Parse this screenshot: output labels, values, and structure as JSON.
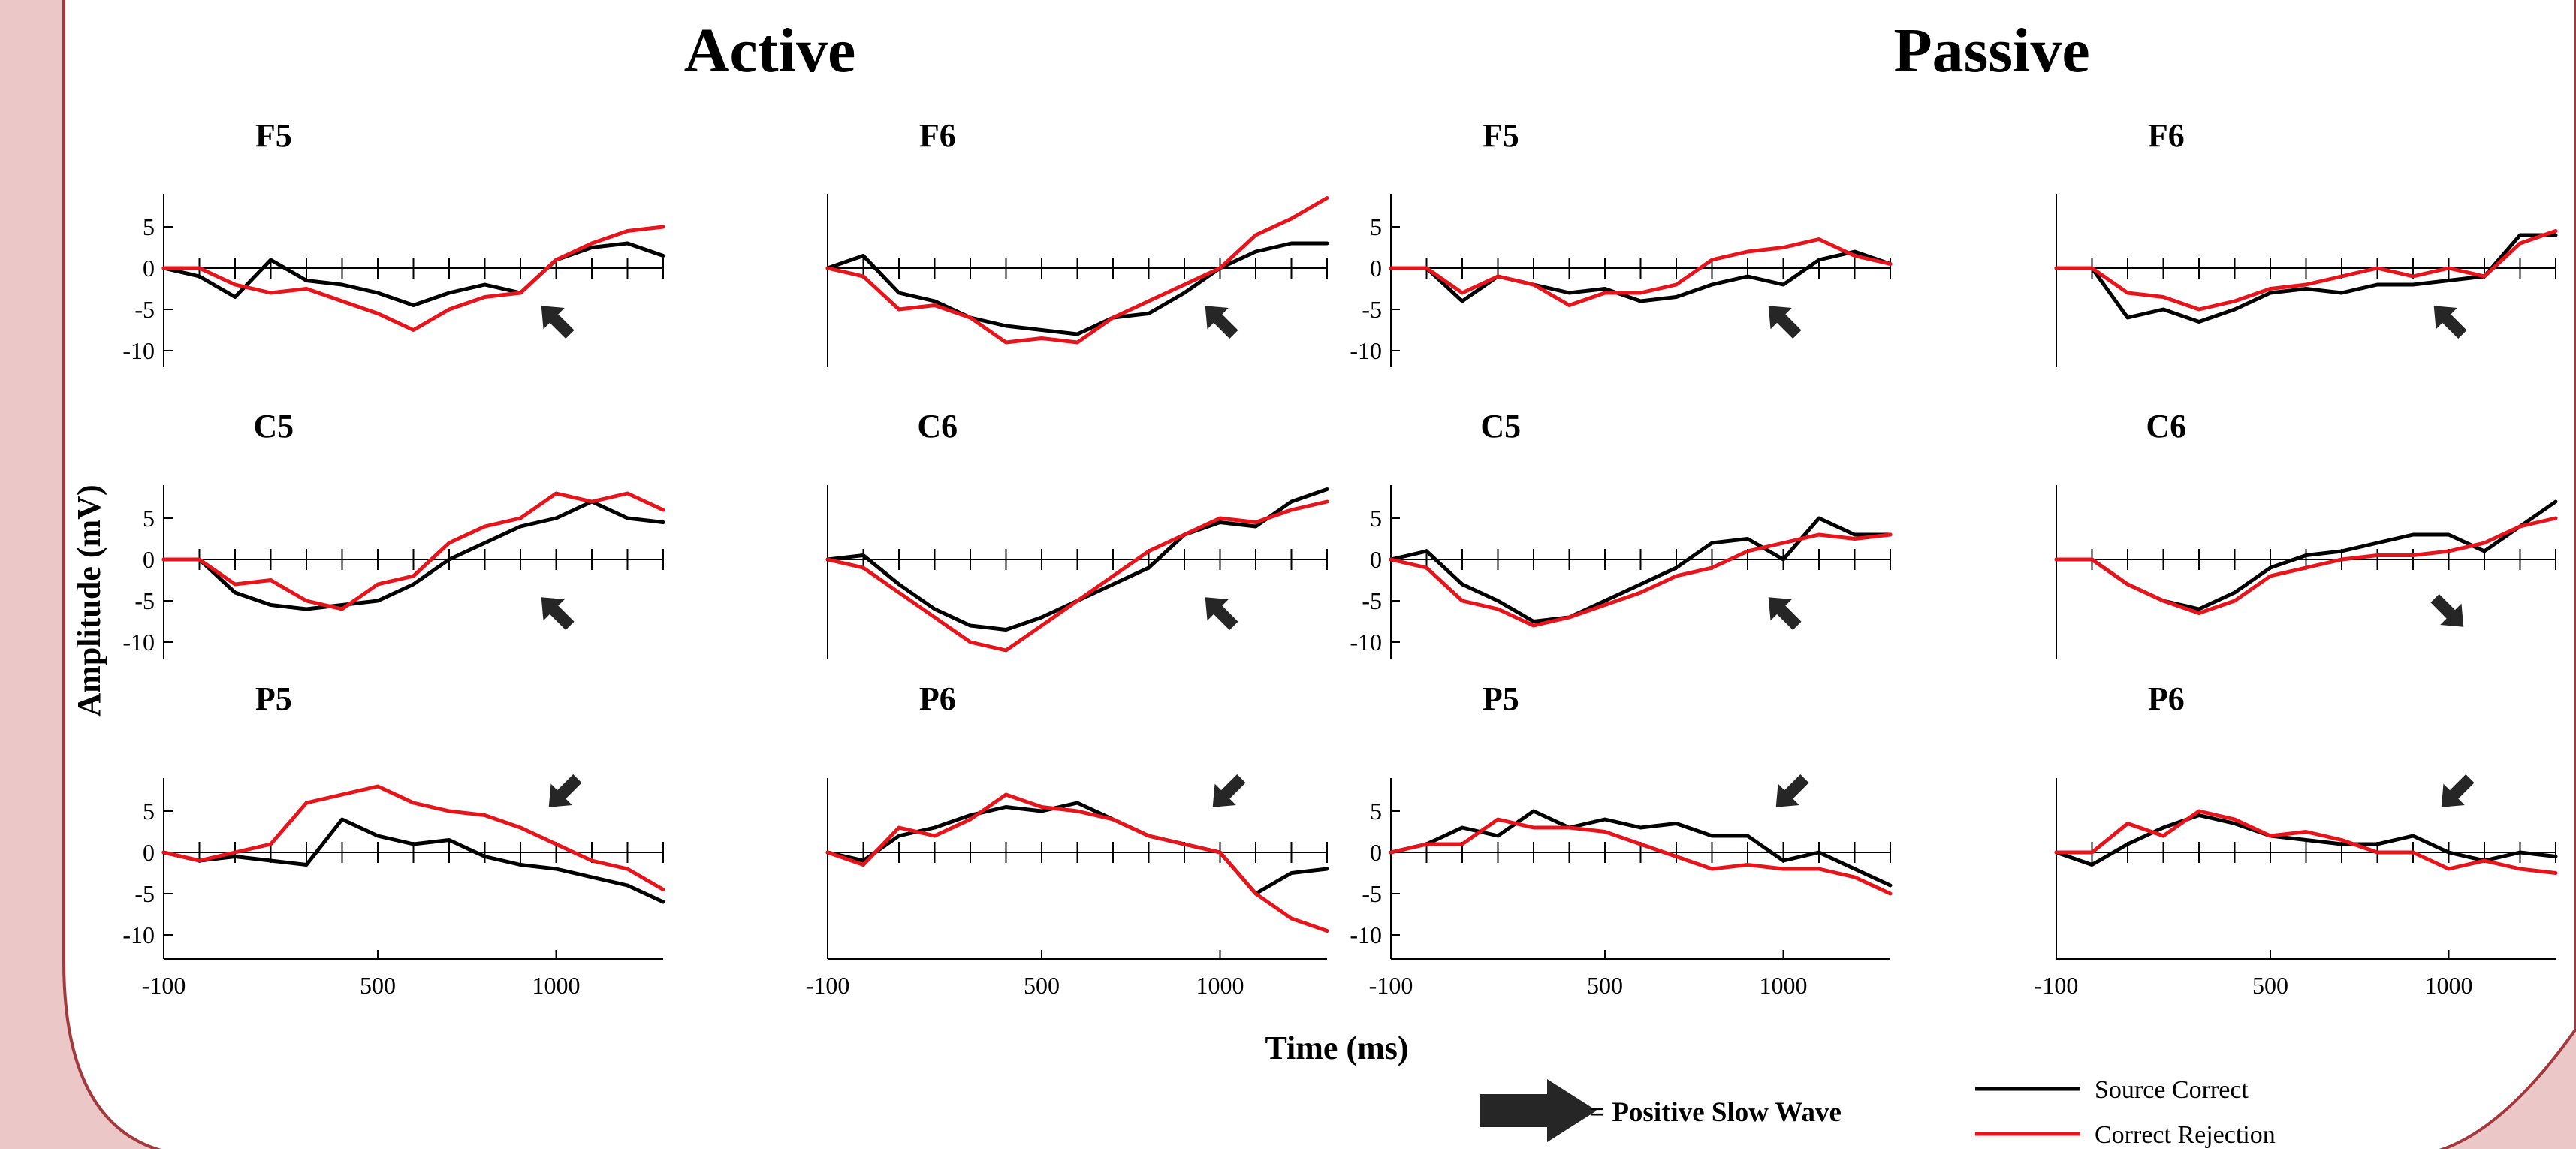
{
  "figure": {
    "group_titles": [
      "Active",
      "Passive"
    ],
    "ylabel": "Amplitude (mV)",
    "xlabel": "Time (ms)",
    "arrow_legend": "= Positive Slow Wave",
    "line_legend": [
      {
        "label": "Source Correct",
        "color": "#000000"
      },
      {
        "label": "Correct Rejection",
        "color": "#e8141c"
      }
    ],
    "arrow_icon": "thick-arrow-icon",
    "background_color": "#ebc7c8",
    "panel_color": "#ffffff",
    "border_color": "#a3393d"
  },
  "chart_data": [
    {
      "type": "line",
      "group": "Active",
      "title": "F5",
      "xlim": [
        -100,
        1300
      ],
      "ylim": [
        -12,
        9
      ],
      "yticks": [
        5,
        0,
        -5,
        -10
      ],
      "xticks": [],
      "arrow": {
        "x": 1000,
        "dir": "up-left"
      },
      "x": [
        -100,
        0,
        100,
        200,
        300,
        400,
        500,
        600,
        700,
        800,
        900,
        1000,
        1100,
        1200,
        1300
      ],
      "series": [
        {
          "name": "Source Correct",
          "color": "#000000",
          "values": [
            0,
            -1,
            -3.5,
            1,
            -1.5,
            -2,
            -3,
            -4.5,
            -3,
            -2,
            -3,
            1,
            2.5,
            3,
            1.5
          ]
        },
        {
          "name": "Correct Rejection",
          "color": "#e8141c",
          "values": [
            0,
            0,
            -2,
            -3,
            -2.5,
            -4,
            -5.5,
            -7.5,
            -5,
            -3.5,
            -3,
            1,
            3,
            4.5,
            5
          ]
        }
      ]
    },
    {
      "type": "line",
      "group": "Active",
      "title": "F6",
      "xlim": [
        -100,
        1300
      ],
      "ylim": [
        -12,
        9
      ],
      "yticks": [],
      "xticks": [],
      "arrow": {
        "x": 1000,
        "dir": "up-left"
      },
      "x": [
        -100,
        0,
        100,
        200,
        300,
        400,
        500,
        600,
        700,
        800,
        900,
        1000,
        1100,
        1200,
        1300
      ],
      "series": [
        {
          "name": "Source Correct",
          "color": "#000000",
          "values": [
            0,
            1.5,
            -3,
            -4,
            -6,
            -7,
            -7.5,
            -8,
            -6,
            -5.5,
            -3,
            0,
            2,
            3,
            3
          ]
        },
        {
          "name": "Correct Rejection",
          "color": "#e8141c",
          "values": [
            0,
            -1,
            -5,
            -4.5,
            -6,
            -9,
            -8.5,
            -9,
            -6,
            -4,
            -2,
            0,
            4,
            6,
            8.5
          ]
        }
      ]
    },
    {
      "type": "line",
      "group": "Passive",
      "title": "F5",
      "xlim": [
        -100,
        1300
      ],
      "ylim": [
        -12,
        9
      ],
      "yticks": [
        5,
        0,
        -5,
        -10
      ],
      "xticks": [],
      "arrow": {
        "x": 1000,
        "dir": "up-left"
      },
      "x": [
        -100,
        0,
        100,
        200,
        300,
        400,
        500,
        600,
        700,
        800,
        900,
        1000,
        1100,
        1200,
        1300
      ],
      "series": [
        {
          "name": "Source Correct",
          "color": "#000000",
          "values": [
            0,
            0,
            -4,
            -1,
            -2,
            -3,
            -2.5,
            -4,
            -3.5,
            -2,
            -1,
            -2,
            1,
            2,
            0.5
          ]
        },
        {
          "name": "Correct Rejection",
          "color": "#e8141c",
          "values": [
            0,
            0,
            -3,
            -1,
            -2,
            -4.5,
            -3,
            -3,
            -2,
            1,
            2,
            2.5,
            3.5,
            1.5,
            0.5
          ]
        }
      ]
    },
    {
      "type": "line",
      "group": "Passive",
      "title": "F6",
      "xlim": [
        -100,
        1300
      ],
      "ylim": [
        -12,
        9
      ],
      "yticks": [],
      "xticks": [],
      "arrow": {
        "x": 1000,
        "dir": "up-left"
      },
      "x": [
        -100,
        0,
        100,
        200,
        300,
        400,
        500,
        600,
        700,
        800,
        900,
        1000,
        1100,
        1200,
        1300
      ],
      "series": [
        {
          "name": "Source Correct",
          "color": "#000000",
          "values": [
            0,
            0,
            -6,
            -5,
            -6.5,
            -5,
            -3,
            -2.5,
            -3,
            -2,
            -2,
            -1.5,
            -1,
            4,
            4
          ]
        },
        {
          "name": "Correct Rejection",
          "color": "#e8141c",
          "values": [
            0,
            0,
            -3,
            -3.5,
            -5,
            -4,
            -2.5,
            -2,
            -1,
            0,
            -1,
            0,
            -1,
            3,
            4.5
          ]
        }
      ]
    },
    {
      "type": "line",
      "group": "Active",
      "title": "C5",
      "xlim": [
        -100,
        1300
      ],
      "ylim": [
        -12,
        9
      ],
      "yticks": [
        5,
        0,
        -5,
        -10
      ],
      "xticks": [],
      "arrow": {
        "x": 1000,
        "dir": "up-left"
      },
      "x": [
        -100,
        0,
        100,
        200,
        300,
        400,
        500,
        600,
        700,
        800,
        900,
        1000,
        1100,
        1200,
        1300
      ],
      "series": [
        {
          "name": "Source Correct",
          "color": "#000000",
          "values": [
            0,
            0,
            -4,
            -5.5,
            -6,
            -5.5,
            -5,
            -3,
            0,
            2,
            4,
            5,
            7,
            5,
            4.5
          ]
        },
        {
          "name": "Correct Rejection",
          "color": "#e8141c",
          "values": [
            0,
            0,
            -3,
            -2.5,
            -5,
            -6,
            -3,
            -2,
            2,
            4,
            5,
            8,
            7,
            8,
            6
          ]
        }
      ]
    },
    {
      "type": "line",
      "group": "Active",
      "title": "C6",
      "xlim": [
        -100,
        1300
      ],
      "ylim": [
        -12,
        9
      ],
      "yticks": [],
      "xticks": [],
      "arrow": {
        "x": 1000,
        "dir": "up-left"
      },
      "x": [
        -100,
        0,
        100,
        200,
        300,
        400,
        500,
        600,
        700,
        800,
        900,
        1000,
        1100,
        1200,
        1300
      ],
      "series": [
        {
          "name": "Source Correct",
          "color": "#000000",
          "values": [
            0,
            0.5,
            -3,
            -6,
            -8,
            -8.5,
            -7,
            -5,
            -3,
            -1,
            3,
            4.5,
            4,
            7,
            8.5
          ]
        },
        {
          "name": "Correct Rejection",
          "color": "#e8141c",
          "values": [
            0,
            -1,
            -4,
            -7,
            -10,
            -11,
            -8,
            -5,
            -2,
            1,
            3,
            5,
            4.5,
            6,
            7
          ]
        }
      ]
    },
    {
      "type": "line",
      "group": "Passive",
      "title": "C5",
      "xlim": [
        -100,
        1300
      ],
      "ylim": [
        -12,
        9
      ],
      "yticks": [
        5,
        0,
        -5,
        -10
      ],
      "xticks": [],
      "arrow": {
        "x": 1000,
        "dir": "up-left"
      },
      "x": [
        -100,
        0,
        100,
        200,
        300,
        400,
        500,
        600,
        700,
        800,
        900,
        1000,
        1100,
        1200,
        1300
      ],
      "series": [
        {
          "name": "Source Correct",
          "color": "#000000",
          "values": [
            0,
            1,
            -3,
            -5,
            -7.5,
            -7,
            -5,
            -3,
            -1,
            2,
            2.5,
            0,
            5,
            3,
            3
          ]
        },
        {
          "name": "Correct Rejection",
          "color": "#e8141c",
          "values": [
            0,
            -1,
            -5,
            -6,
            -8,
            -7,
            -5.5,
            -4,
            -2,
            -1,
            1,
            2,
            3,
            2.5,
            3
          ]
        }
      ]
    },
    {
      "type": "line",
      "group": "Passive",
      "title": "C6",
      "xlim": [
        -100,
        1300
      ],
      "ylim": [
        -12,
        9
      ],
      "yticks": [],
      "xticks": [],
      "arrow": {
        "x": 1000,
        "dir": "down-right"
      },
      "x": [
        -100,
        0,
        100,
        200,
        300,
        400,
        500,
        600,
        700,
        800,
        900,
        1000,
        1100,
        1200,
        1300
      ],
      "series": [
        {
          "name": "Source Correct",
          "color": "#000000",
          "values": [
            0,
            0,
            -3,
            -5,
            -6,
            -4,
            -1,
            0.5,
            1,
            2,
            3,
            3,
            1,
            4,
            7
          ]
        },
        {
          "name": "Correct Rejection",
          "color": "#e8141c",
          "values": [
            0,
            0,
            -3,
            -5,
            -6.5,
            -5,
            -2,
            -1,
            0,
            0.5,
            0.5,
            1,
            2,
            4,
            5
          ]
        }
      ]
    },
    {
      "type": "line",
      "group": "Active",
      "title": "P5",
      "xlim": [
        -100,
        1300
      ],
      "ylim": [
        -12,
        9
      ],
      "yticks": [
        5,
        0,
        -5,
        -10
      ],
      "xticks": [
        -100,
        500,
        1000
      ],
      "arrow": {
        "x": 1000,
        "dir": "down-left"
      },
      "x": [
        -100,
        0,
        100,
        200,
        300,
        400,
        500,
        600,
        700,
        800,
        900,
        1000,
        1100,
        1200,
        1300
      ],
      "series": [
        {
          "name": "Source Correct",
          "color": "#000000",
          "values": [
            0,
            -1,
            -0.5,
            -1,
            -1.5,
            4,
            2,
            1,
            1.5,
            -0.5,
            -1.5,
            -2,
            -3,
            -4,
            -6
          ]
        },
        {
          "name": "Correct Rejection",
          "color": "#e8141c",
          "values": [
            0,
            -1,
            0,
            1,
            6,
            7,
            8,
            6,
            5,
            4.5,
            3,
            1,
            -1,
            -2,
            -4.5
          ]
        }
      ]
    },
    {
      "type": "line",
      "group": "Active",
      "title": "P6",
      "xlim": [
        -100,
        1300
      ],
      "ylim": [
        -12,
        9
      ],
      "yticks": [],
      "xticks": [
        -100,
        500,
        1000
      ],
      "arrow": {
        "x": 1000,
        "dir": "down-left"
      },
      "x": [
        -100,
        0,
        100,
        200,
        300,
        400,
        500,
        600,
        700,
        800,
        900,
        1000,
        1100,
        1200,
        1300
      ],
      "series": [
        {
          "name": "Source Correct",
          "color": "#000000",
          "values": [
            0,
            -1,
            2,
            3,
            4.5,
            5.5,
            5,
            6,
            4,
            2,
            1,
            0,
            -5,
            -2.5,
            -2
          ]
        },
        {
          "name": "Correct Rejection",
          "color": "#e8141c",
          "values": [
            0,
            -1.5,
            3,
            2,
            4,
            7,
            5.5,
            5,
            4,
            2,
            1,
            0,
            -5,
            -8,
            -9.5
          ]
        }
      ]
    },
    {
      "type": "line",
      "group": "Passive",
      "title": "P5",
      "xlim": [
        -100,
        1300
      ],
      "ylim": [
        -12,
        9
      ],
      "yticks": [
        5,
        0,
        -5,
        -10
      ],
      "xticks": [
        -100,
        500,
        1000
      ],
      "arrow": {
        "x": 1000,
        "dir": "down-left"
      },
      "x": [
        -100,
        0,
        100,
        200,
        300,
        400,
        500,
        600,
        700,
        800,
        900,
        1000,
        1100,
        1200,
        1300
      ],
      "series": [
        {
          "name": "Source Correct",
          "color": "#000000",
          "values": [
            0,
            1,
            3,
            2,
            5,
            3,
            4,
            3,
            3.5,
            2,
            2,
            -1,
            0,
            -2,
            -4
          ]
        },
        {
          "name": "Correct Rejection",
          "color": "#e8141c",
          "values": [
            0,
            1,
            1,
            4,
            3,
            3,
            2.5,
            1,
            -0.5,
            -2,
            -1.5,
            -2,
            -2,
            -3,
            -5
          ]
        }
      ]
    },
    {
      "type": "line",
      "group": "Passive",
      "title": "P6",
      "xlim": [
        -100,
        1300
      ],
      "ylim": [
        -12,
        9
      ],
      "yticks": [],
      "xticks": [
        -100,
        500,
        1000
      ],
      "arrow": {
        "x": 1000,
        "dir": "down-left"
      },
      "x": [
        -100,
        0,
        100,
        200,
        300,
        400,
        500,
        600,
        700,
        800,
        900,
        1000,
        1100,
        1200,
        1300
      ],
      "series": [
        {
          "name": "Source Correct",
          "color": "#000000",
          "values": [
            0,
            -1.5,
            1,
            3,
            4.5,
            3.5,
            2,
            1.5,
            1,
            1,
            2,
            0,
            -1,
            0,
            -0.5
          ]
        },
        {
          "name": "Correct Rejection",
          "color": "#e8141c",
          "values": [
            0,
            0,
            3.5,
            2,
            5,
            4,
            2,
            2.5,
            1.5,
            0,
            0,
            -2,
            -1,
            -2,
            -2.5
          ]
        }
      ]
    }
  ]
}
